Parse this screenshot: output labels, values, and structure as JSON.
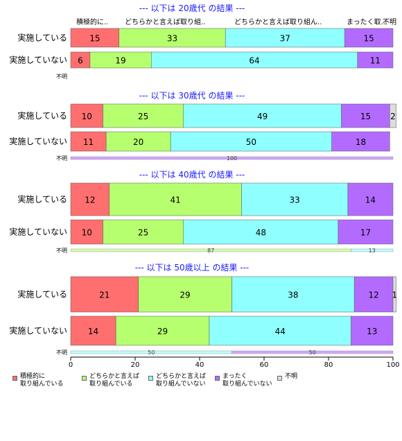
{
  "chart_data": {
    "type": "bar",
    "orientation": "horizontal-stacked-percent",
    "header_labels": [
      "積極的に..",
      "どちらかと言えば取り組..",
      "どちらかと言えば取り組ん..",
      "まったく取..",
      "不明"
    ],
    "legend": {
      "placement": "bottom-left",
      "entries": [
        "積極的に\n取り組んでいる",
        "どちらかと言えば\n取り組んでいる",
        "どちらかと言えば\n取り組んでいない",
        "まったく\n取り組んでいない",
        "不明"
      ]
    },
    "colors": [
      "#ff6f6f",
      "#b6ff6e",
      "#8fffff",
      "#b36bff",
      "#dddddd"
    ],
    "xlim": [
      0,
      100
    ],
    "xticks": [
      0,
      20,
      40,
      60,
      80,
      100
    ],
    "panels": [
      {
        "title": "--- 以下は 20歳代 の結果 ---",
        "rows": [
          {
            "label": "実施している",
            "values": [
              15,
              33,
              37,
              15,
              0
            ],
            "shown": [
              "15",
              "33",
              "37",
              "15",
              ""
            ]
          },
          {
            "label": "実施していない",
            "values": [
              6,
              19,
              64,
              11,
              0
            ],
            "shown": [
              "6",
              "19",
              "64",
              "11",
              ""
            ]
          }
        ],
        "unknown": {
          "label": "不明",
          "values": [
            0,
            0,
            0,
            0,
            0
          ],
          "shown": [
            "",
            "",
            "",
            "",
            ""
          ]
        }
      },
      {
        "title": "--- 以下は 30歳代 の結果 ---",
        "rows": [
          {
            "label": "実施している",
            "values": [
              10,
              25,
              49,
              15,
              2
            ],
            "shown": [
              "10",
              "25",
              "49",
              "15",
              "2"
            ]
          },
          {
            "label": "実施していない",
            "values": [
              11,
              20,
              50,
              18,
              0
            ],
            "shown": [
              "11",
              "20",
              "50",
              "18",
              ""
            ]
          }
        ],
        "unknown": {
          "label": "不明",
          "values": [
            0,
            0,
            0,
            100,
            0
          ],
          "shown": [
            "",
            "",
            "",
            "100",
            ""
          ]
        }
      },
      {
        "title": "--- 以下は 40歳代 の結果 ---",
        "rows": [
          {
            "label": "実施している",
            "values": [
              12,
              41,
              33,
              14,
              0
            ],
            "shown": [
              "12",
              "41",
              "33",
              "14",
              ""
            ]
          },
          {
            "label": "実施していない",
            "values": [
              10,
              25,
              48,
              17,
              0
            ],
            "shown": [
              "10",
              "25",
              "48",
              "17",
              ""
            ]
          }
        ],
        "unknown": {
          "label": "不明",
          "values": [
            0,
            87,
            13,
            0,
            0
          ],
          "shown": [
            "",
            "87",
            "13",
            "",
            ""
          ]
        }
      },
      {
        "title": "--- 以下は 50歳以上 の結果 ---",
        "rows": [
          {
            "label": "実施している",
            "values": [
              21,
              29,
              38,
              12,
              1
            ],
            "shown": [
              "21",
              "29",
              "38",
              "12",
              "1"
            ]
          },
          {
            "label": "実施していない",
            "values": [
              14,
              29,
              44,
              13,
              0
            ],
            "shown": [
              "14",
              "29",
              "44",
              "13",
              ""
            ]
          }
        ],
        "unknown": {
          "label": "不明",
          "values": [
            0,
            0,
            50,
            50,
            0
          ],
          "shown": [
            "",
            "",
            "50",
            "50",
            ""
          ]
        }
      }
    ]
  }
}
